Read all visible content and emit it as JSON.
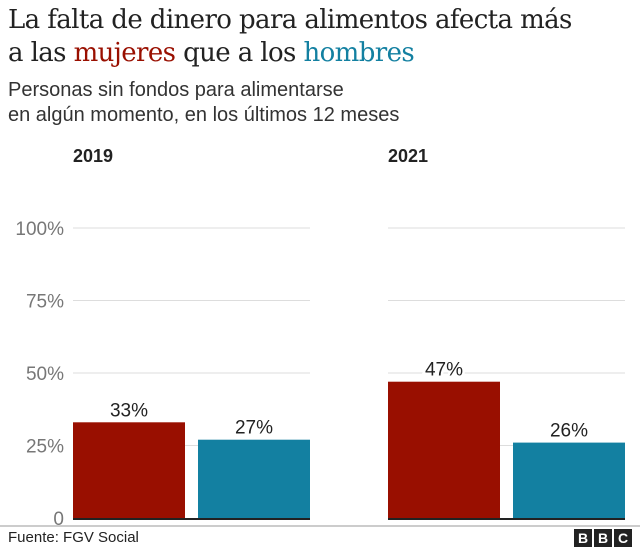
{
  "title": {
    "part1": "La falta de dinero para alimentos afecta más",
    "part2": "a las ",
    "women_word": "mujeres",
    "part3": " que a los ",
    "men_word": "hombres"
  },
  "subtitle": {
    "line1": "Personas sin fondos para alimentarse",
    "line2": "en algún momento, en los últimos 12 meses"
  },
  "colors": {
    "women": "#990f00",
    "men": "#1380a1",
    "grid": "#dddddd"
  },
  "chart_data": {
    "type": "bar",
    "panels": [
      {
        "title": "2019",
        "values": [
          33,
          27
        ],
        "labels": [
          "33%",
          "27%"
        ]
      },
      {
        "title": "2021",
        "values": [
          47,
          26
        ],
        "labels": [
          "47%",
          "26%"
        ]
      }
    ],
    "series_keys": [
      "mujeres",
      "hombres"
    ],
    "ylim": [
      0,
      100
    ],
    "yticks": [
      0,
      25,
      50,
      75,
      100
    ],
    "ytick_labels": [
      "0",
      "25%",
      "50%",
      "75%",
      "100%"
    ],
    "grid": true
  },
  "footer": {
    "source": "Fuente: FGV Social",
    "logo": [
      "B",
      "B",
      "C"
    ]
  }
}
